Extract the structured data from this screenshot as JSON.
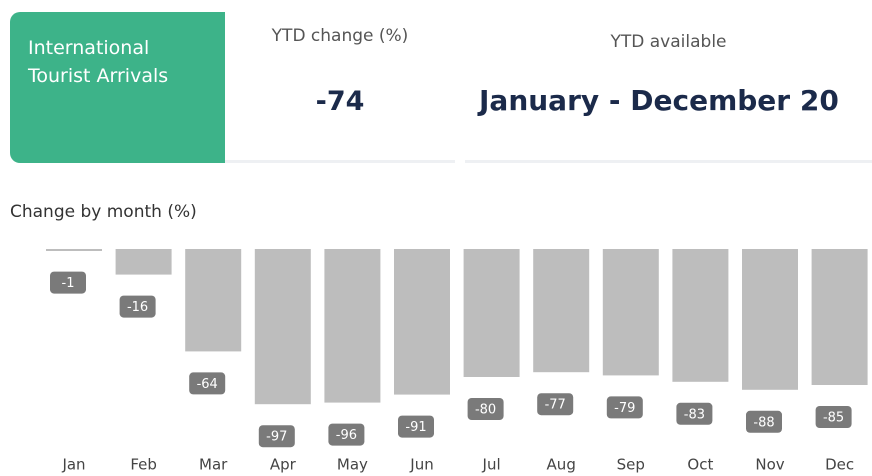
{
  "tiles": {
    "indicator": "International Tourist Arrivals",
    "ytd_change_label": "YTD change (%)",
    "ytd_change_value": "-74",
    "ytd_available_label": "YTD available",
    "ytd_available_value": "January - December 20"
  },
  "chart_data": {
    "type": "bar",
    "title": "Change by month (%)",
    "categories": [
      "Jan",
      "Feb",
      "Mar",
      "Apr",
      "May",
      "Jun",
      "Jul",
      "Aug",
      "Sep",
      "Oct",
      "Nov",
      "Dec"
    ],
    "values": [
      -1,
      -16,
      -64,
      -97,
      -96,
      -91,
      -80,
      -77,
      -79,
      -83,
      -88,
      -85
    ],
    "color": "#bdbdbd",
    "ylim": [
      -100,
      0
    ]
  }
}
